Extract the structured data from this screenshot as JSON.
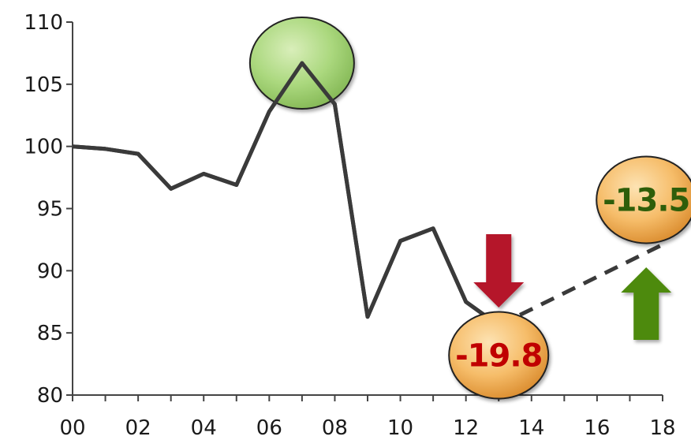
{
  "chart_data": {
    "type": "line",
    "title": "",
    "xlabel": "",
    "ylabel": "",
    "xlim": [
      0,
      18
    ],
    "ylim": [
      80,
      110
    ],
    "x_ticks": [
      "00",
      "02",
      "04",
      "06",
      "08",
      "10",
      "12",
      "14",
      "16",
      "18"
    ],
    "y_ticks": [
      "80",
      "85",
      "90",
      "95",
      "100",
      "105",
      "110"
    ],
    "series": [
      {
        "style": "solid",
        "color": "#3a3a3a",
        "points": [
          {
            "x": 0,
            "y": 100.0
          },
          {
            "x": 1,
            "y": 99.8
          },
          {
            "x": 2,
            "y": 99.4
          },
          {
            "x": 3,
            "y": 96.6
          },
          {
            "x": 4,
            "y": 97.8
          },
          {
            "x": 5,
            "y": 96.9
          },
          {
            "x": 6,
            "y": 102.8
          },
          {
            "x": 7,
            "y": 106.7
          },
          {
            "x": 8,
            "y": 103.4
          },
          {
            "x": 9,
            "y": 86.3
          },
          {
            "x": 10,
            "y": 92.4
          },
          {
            "x": 11,
            "y": 93.4
          },
          {
            "x": 12,
            "y": 87.5
          },
          {
            "x": 13,
            "y": 85.6
          }
        ]
      },
      {
        "style": "dashed",
        "color": "#3a3a3a",
        "points": [
          {
            "x": 13,
            "y": 85.6
          },
          {
            "x": 18,
            "y": 92.1
          }
        ]
      }
    ],
    "annotations": [
      {
        "kind": "peak-marker",
        "x": 7,
        "y": 106.7,
        "text": "",
        "fill": "#a8d878"
      },
      {
        "kind": "value-bubble",
        "x": 13,
        "y": 83.2,
        "text": "-19.8",
        "text_color": "#c00000",
        "fill": "#f5b862"
      },
      {
        "kind": "value-bubble",
        "x": 17.5,
        "y": 95.7,
        "text": "-13.5",
        "text_color": "#2e5e0a",
        "fill": "#f5b862"
      },
      {
        "kind": "arrow-down",
        "x": 13,
        "color": "#b5152b"
      },
      {
        "kind": "arrow-up",
        "x": 17.5,
        "color": "#4e8a0e"
      }
    ]
  }
}
